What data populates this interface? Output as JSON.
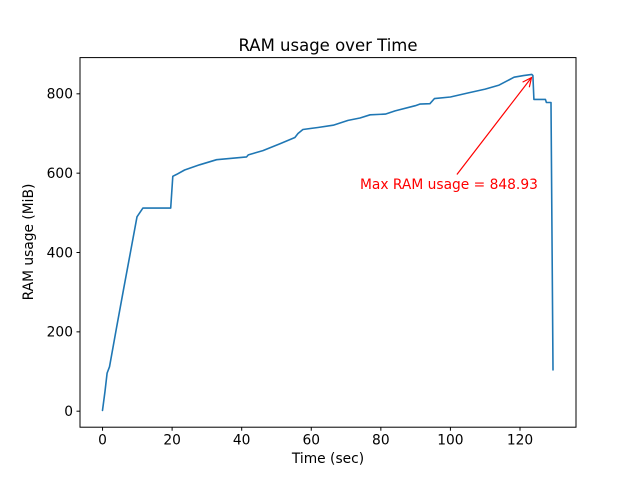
{
  "chart_data": {
    "type": "line",
    "title": "RAM usage over Time",
    "xlabel": "Time (sec)",
    "ylabel": "RAM usage (MiB)",
    "line_color": "#1f77b4",
    "axis_color": "#000000",
    "grid": false,
    "xlim": [
      -6.48,
      136.1
    ],
    "ylim": [
      -40.35,
      891.3
    ],
    "xticks": [
      0,
      20,
      40,
      60,
      80,
      100,
      120
    ],
    "yticks": [
      0,
      200,
      400,
      600,
      800
    ],
    "x": [
      0,
      0.7,
      1.3,
      2.0,
      4.0,
      6.0,
      8.0,
      9.9,
      11.6,
      19.6,
      20.2,
      21.3,
      23.6,
      27.9,
      32.8,
      41.4,
      41.9,
      46.1,
      51.0,
      55.3,
      56.2,
      57.6,
      61.9,
      66.3,
      70.6,
      74.0,
      76.9,
      81.3,
      84.1,
      89.9,
      91.2,
      94.1,
      95.4,
      100,
      105,
      110,
      114,
      118.3,
      121,
      123.4,
      123.7,
      124.0,
      127.3,
      127.6,
      128.9,
      129.5
    ],
    "y": [
      2,
      50,
      96,
      112,
      210,
      305,
      400,
      490,
      512,
      512,
      592,
      597,
      608,
      621,
      634,
      641,
      646,
      657,
      674,
      690,
      700,
      710,
      715,
      721,
      733,
      739,
      747,
      749,
      757,
      770,
      774,
      775,
      788,
      792,
      802,
      812,
      822,
      842,
      846,
      848.93,
      846,
      786,
      786,
      778,
      778,
      104
    ],
    "max_value": 848.93,
    "annotation": {
      "text": "Max RAM usage = 848.93",
      "xy": [
        124,
        848.93
      ],
      "xytext": [
        74,
        563
      ],
      "color": "#ff0000"
    }
  }
}
